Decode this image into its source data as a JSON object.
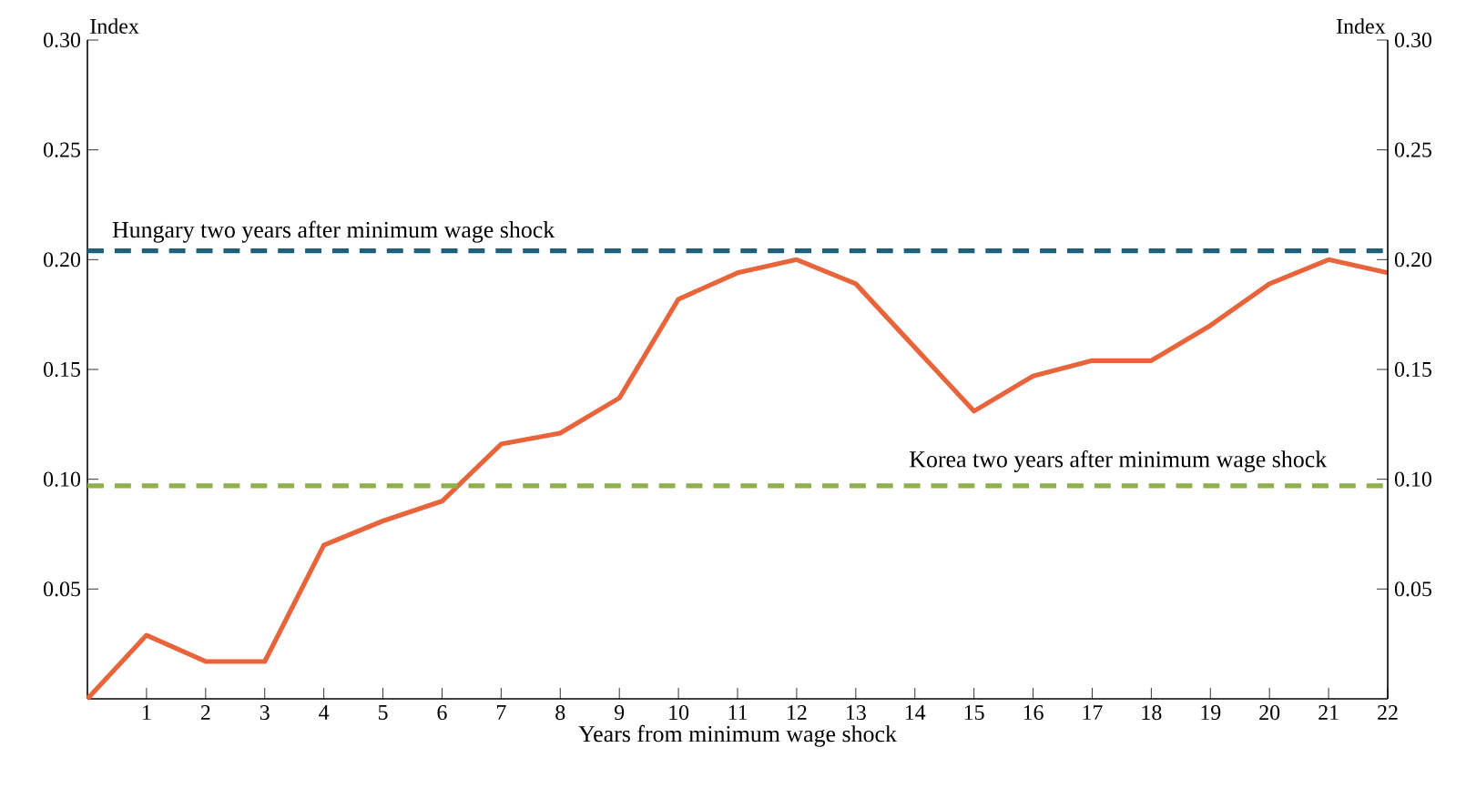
{
  "chart_data": {
    "type": "line",
    "xlabel": "Years from minimum wage shock",
    "annotations": [
      "Index",
      "Index"
    ],
    "x": [
      0,
      1,
      2,
      3,
      4,
      5,
      6,
      7,
      8,
      9,
      10,
      11,
      12,
      13,
      14,
      15,
      16,
      17,
      18,
      19,
      20,
      21,
      22
    ],
    "series": [
      {
        "color": "#e8643a",
        "values": [
          0,
          0.029,
          0.017,
          0.017,
          0.07,
          0.081,
          0.09,
          0.116,
          0.121,
          0.137,
          0.182,
          0.194,
          0.2,
          0.189,
          0.16,
          0.131,
          0.147,
          0.154,
          0.154,
          0.17,
          0.189,
          0.2,
          0.194
        ]
      }
    ],
    "xlim": [
      0,
      22
    ],
    "xticks": [
      1,
      2,
      3,
      4,
      5,
      6,
      7,
      8,
      9,
      10,
      11,
      12,
      13,
      14,
      15,
      16,
      17,
      18,
      19,
      20,
      21,
      22
    ],
    "ylim": [
      0,
      0.3
    ],
    "yticks": [
      0.05,
      {
        "value": 0.1,
        "label": "0.10"
      },
      0.15,
      {
        "value": 0.2,
        "label": "0.20"
      },
      0.25,
      {
        "value": 0.3,
        "label": "0.30"
      }
    ],
    "y2lim": [
      0,
      0.3
    ],
    "y2ticks": [
      0.05,
      {
        "value": 0.1,
        "label": "0.10"
      },
      0.15,
      {
        "value": 0.2,
        "label": "0.20"
      },
      0.25,
      {
        "value": 0.3,
        "label": "0.30"
      }
    ],
    "ref_lines": [
      {
        "axis": "y",
        "value": 0.204,
        "label": "Hungary two years after minimum wage shock",
        "color": "#1f5f7a",
        "line_style": "dashed"
      },
      {
        "axis": "y",
        "value": 0.097,
        "label": "Korea two years after minimum wage shock",
        "color": "#8db04a",
        "line_style": "dashed"
      }
    ],
    "line_style": "solid",
    "marker": "none",
    "grid": false
  }
}
